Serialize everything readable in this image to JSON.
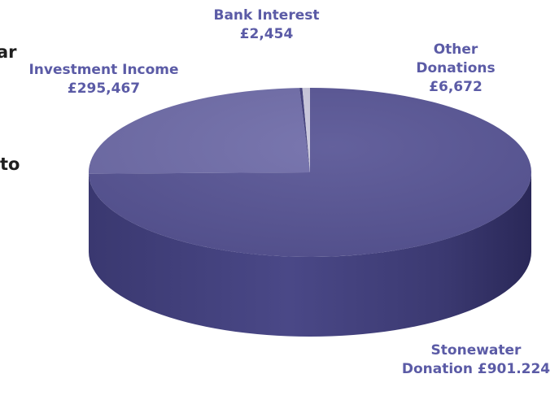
{
  "page": {
    "cut_text": [
      "ar",
      "to"
    ]
  },
  "chart_data": {
    "type": "pie",
    "title": "",
    "style": "3d-pie",
    "slices": [
      {
        "label_lines": [
          "Stonewater",
          "Donation £901.224"
        ],
        "value": 901224,
        "color": "#565394"
      },
      {
        "label_lines": [
          "Investment Income",
          "£295,467"
        ],
        "value": 295467,
        "color": "#6e6ba8"
      },
      {
        "label_lines": [
          "Bank Interest",
          "£2,454"
        ],
        "value": 2454,
        "color": "#3e3b7a"
      },
      {
        "label_lines": [
          "Other",
          "Donations",
          "£6,672"
        ],
        "value": 6672,
        "color": "#c9c7dc"
      }
    ],
    "label_color": "#5b5ba6"
  }
}
